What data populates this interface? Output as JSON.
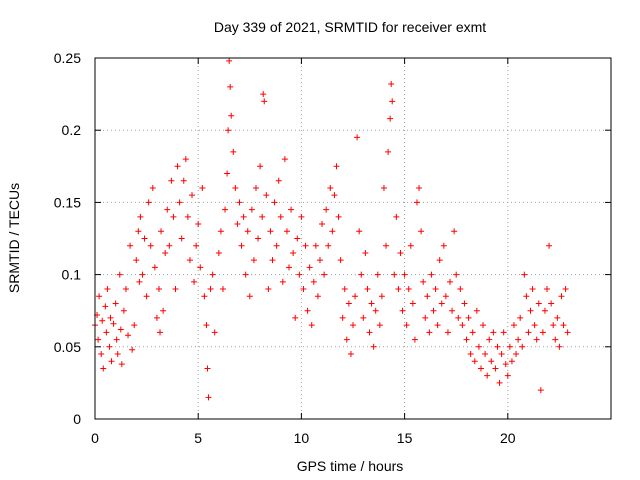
{
  "chart_data": {
    "type": "scatter",
    "title": "Day 339 of 2021, SRMTID for receiver exmt",
    "xlabel": "GPS time / hours",
    "ylabel": "SRMTID / TECUs",
    "xlim": [
      0,
      25
    ],
    "ylim": [
      0,
      0.25
    ],
    "xticks": [
      0,
      5,
      10,
      15,
      20
    ],
    "xtick_labels": [
      "0",
      "5",
      "10",
      "15",
      "20"
    ],
    "yticks": [
      0,
      0.05,
      0.1,
      0.15,
      0.2,
      0.25
    ],
    "ytick_labels": [
      "0",
      "0.05",
      "0.1",
      "0.15",
      "0.2",
      "0.25"
    ],
    "grid": true,
    "marker": "+",
    "color": "#ff0000",
    "series": [
      {
        "name": "SRMTID",
        "points": [
          [
            0.0,
            0.065
          ],
          [
            0.1,
            0.072
          ],
          [
            0.15,
            0.055
          ],
          [
            0.2,
            0.085
          ],
          [
            0.3,
            0.045
          ],
          [
            0.35,
            0.068
          ],
          [
            0.4,
            0.035
          ],
          [
            0.5,
            0.078
          ],
          [
            0.55,
            0.06
          ],
          [
            0.6,
            0.09
          ],
          [
            0.7,
            0.05
          ],
          [
            0.75,
            0.07
          ],
          [
            0.8,
            0.04
          ],
          [
            0.9,
            0.066
          ],
          [
            1.0,
            0.08
          ],
          [
            1.05,
            0.055
          ],
          [
            1.1,
            0.045
          ],
          [
            1.2,
            0.1
          ],
          [
            1.25,
            0.062
          ],
          [
            1.3,
            0.038
          ],
          [
            1.4,
            0.075
          ],
          [
            1.5,
            0.09
          ],
          [
            1.6,
            0.058
          ],
          [
            1.7,
            0.12
          ],
          [
            1.8,
            0.048
          ],
          [
            1.9,
            0.065
          ],
          [
            2.0,
            0.11
          ],
          [
            2.1,
            0.13
          ],
          [
            2.15,
            0.095
          ],
          [
            2.2,
            0.14
          ],
          [
            2.3,
            0.1
          ],
          [
            2.4,
            0.125
          ],
          [
            2.5,
            0.085
          ],
          [
            2.6,
            0.15
          ],
          [
            2.7,
            0.12
          ],
          [
            2.8,
            0.16
          ],
          [
            2.9,
            0.105
          ],
          [
            3.0,
            0.07
          ],
          [
            3.1,
            0.09
          ],
          [
            3.15,
            0.06
          ],
          [
            3.2,
            0.13
          ],
          [
            3.3,
            0.075
          ],
          [
            3.4,
            0.115
          ],
          [
            3.5,
            0.145
          ],
          [
            3.6,
            0.12
          ],
          [
            3.7,
            0.165
          ],
          [
            3.8,
            0.14
          ],
          [
            3.9,
            0.09
          ],
          [
            4.0,
            0.175
          ],
          [
            4.1,
            0.15
          ],
          [
            4.2,
            0.125
          ],
          [
            4.3,
            0.165
          ],
          [
            4.4,
            0.18
          ],
          [
            4.5,
            0.14
          ],
          [
            4.6,
            0.11
          ],
          [
            4.7,
            0.155
          ],
          [
            4.8,
            0.095
          ],
          [
            4.9,
            0.12
          ],
          [
            5.0,
            0.135
          ],
          [
            5.1,
            0.105
          ],
          [
            5.2,
            0.16
          ],
          [
            5.3,
            0.085
          ],
          [
            5.4,
            0.065
          ],
          [
            5.45,
            0.035
          ],
          [
            5.5,
            0.015
          ],
          [
            5.6,
            0.09
          ],
          [
            5.7,
            0.1
          ],
          [
            5.8,
            0.06
          ],
          [
            6.0,
            0.115
          ],
          [
            6.1,
            0.13
          ],
          [
            6.2,
            0.09
          ],
          [
            6.3,
            0.145
          ],
          [
            6.4,
            0.17
          ],
          [
            6.45,
            0.2
          ],
          [
            6.5,
            0.248
          ],
          [
            6.55,
            0.23
          ],
          [
            6.6,
            0.21
          ],
          [
            6.7,
            0.185
          ],
          [
            6.8,
            0.16
          ],
          [
            6.9,
            0.135
          ],
          [
            7.0,
            0.15
          ],
          [
            7.1,
            0.12
          ],
          [
            7.2,
            0.14
          ],
          [
            7.3,
            0.1
          ],
          [
            7.4,
            0.13
          ],
          [
            7.5,
            0.085
          ],
          [
            7.6,
            0.145
          ],
          [
            7.7,
            0.11
          ],
          [
            7.8,
            0.16
          ],
          [
            7.9,
            0.125
          ],
          [
            8.0,
            0.175
          ],
          [
            8.1,
            0.14
          ],
          [
            8.15,
            0.225
          ],
          [
            8.2,
            0.22
          ],
          [
            8.3,
            0.155
          ],
          [
            8.4,
            0.09
          ],
          [
            8.5,
            0.13
          ],
          [
            8.6,
            0.11
          ],
          [
            8.7,
            0.15
          ],
          [
            8.8,
            0.12
          ],
          [
            8.9,
            0.165
          ],
          [
            9.0,
            0.14
          ],
          [
            9.1,
            0.095
          ],
          [
            9.2,
            0.18
          ],
          [
            9.3,
            0.13
          ],
          [
            9.4,
            0.105
          ],
          [
            9.5,
            0.145
          ],
          [
            9.6,
            0.115
          ],
          [
            9.7,
            0.07
          ],
          [
            9.8,
            0.125
          ],
          [
            9.9,
            0.1
          ],
          [
            10.0,
            0.14
          ],
          [
            10.1,
            0.09
          ],
          [
            10.2,
            0.12
          ],
          [
            10.3,
            0.075
          ],
          [
            10.4,
            0.105
          ],
          [
            10.5,
            0.065
          ],
          [
            10.6,
            0.095
          ],
          [
            10.7,
            0.12
          ],
          [
            10.8,
            0.085
          ],
          [
            10.9,
            0.11
          ],
          [
            11.0,
            0.135
          ],
          [
            11.1,
            0.1
          ],
          [
            11.2,
            0.145
          ],
          [
            11.3,
            0.12
          ],
          [
            11.4,
            0.16
          ],
          [
            11.5,
            0.13
          ],
          [
            11.6,
            0.155
          ],
          [
            11.7,
            0.175
          ],
          [
            11.8,
            0.14
          ],
          [
            11.9,
            0.11
          ],
          [
            12.0,
            0.07
          ],
          [
            12.1,
            0.09
          ],
          [
            12.2,
            0.055
          ],
          [
            12.3,
            0.08
          ],
          [
            12.4,
            0.045
          ],
          [
            12.5,
            0.065
          ],
          [
            12.6,
            0.085
          ],
          [
            12.7,
            0.195
          ],
          [
            12.8,
            0.13
          ],
          [
            12.9,
            0.1
          ],
          [
            13.0,
            0.07
          ],
          [
            13.1,
            0.115
          ],
          [
            13.2,
            0.09
          ],
          [
            13.3,
            0.06
          ],
          [
            13.4,
            0.08
          ],
          [
            13.5,
            0.05
          ],
          [
            13.6,
            0.075
          ],
          [
            13.7,
            0.1
          ],
          [
            13.8,
            0.065
          ],
          [
            13.9,
            0.085
          ],
          [
            14.0,
            0.16
          ],
          [
            14.1,
            0.12
          ],
          [
            14.2,
            0.185
          ],
          [
            14.3,
            0.208
          ],
          [
            14.35,
            0.232
          ],
          [
            14.4,
            0.22
          ],
          [
            14.5,
            0.1
          ],
          [
            14.6,
            0.14
          ],
          [
            14.7,
            0.09
          ],
          [
            14.8,
            0.115
          ],
          [
            14.9,
            0.075
          ],
          [
            15.0,
            0.1
          ],
          [
            15.1,
            0.065
          ],
          [
            15.2,
            0.09
          ],
          [
            15.3,
            0.12
          ],
          [
            15.4,
            0.08
          ],
          [
            15.5,
            0.055
          ],
          [
            15.6,
            0.15
          ],
          [
            15.7,
            0.16
          ],
          [
            15.8,
            0.13
          ],
          [
            15.9,
            0.095
          ],
          [
            16.0,
            0.07
          ],
          [
            16.1,
            0.085
          ],
          [
            16.2,
            0.06
          ],
          [
            16.3,
            0.1
          ],
          [
            16.4,
            0.075
          ],
          [
            16.5,
            0.09
          ],
          [
            16.6,
            0.065
          ],
          [
            16.7,
            0.11
          ],
          [
            16.8,
            0.08
          ],
          [
            16.9,
            0.12
          ],
          [
            17.0,
            0.085
          ],
          [
            17.1,
            0.06
          ],
          [
            17.2,
            0.095
          ],
          [
            17.3,
            0.075
          ],
          [
            17.4,
            0.13
          ],
          [
            17.5,
            0.1
          ],
          [
            17.6,
            0.07
          ],
          [
            17.7,
            0.09
          ],
          [
            17.8,
            0.065
          ],
          [
            17.9,
            0.08
          ],
          [
            18.0,
            0.055
          ],
          [
            18.1,
            0.07
          ],
          [
            18.2,
            0.045
          ],
          [
            18.3,
            0.06
          ],
          [
            18.4,
            0.04
          ],
          [
            18.5,
            0.075
          ],
          [
            18.6,
            0.05
          ],
          [
            18.7,
            0.035
          ],
          [
            18.8,
            0.065
          ],
          [
            18.9,
            0.045
          ],
          [
            19.0,
            0.03
          ],
          [
            19.1,
            0.055
          ],
          [
            19.2,
            0.04
          ],
          [
            19.3,
            0.06
          ],
          [
            19.4,
            0.035
          ],
          [
            19.5,
            0.05
          ],
          [
            19.6,
            0.025
          ],
          [
            19.7,
            0.045
          ],
          [
            19.8,
            0.06
          ],
          [
            19.9,
            0.038
          ],
          [
            20.0,
            0.03
          ],
          [
            20.1,
            0.05
          ],
          [
            20.2,
            0.04
          ],
          [
            20.3,
            0.065
          ],
          [
            20.4,
            0.045
          ],
          [
            20.5,
            0.055
          ],
          [
            20.6,
            0.07
          ],
          [
            20.7,
            0.05
          ],
          [
            20.8,
            0.1
          ],
          [
            20.9,
            0.085
          ],
          [
            21.0,
            0.06
          ],
          [
            21.1,
            0.075
          ],
          [
            21.2,
            0.09
          ],
          [
            21.3,
            0.065
          ],
          [
            21.4,
            0.055
          ],
          [
            21.5,
            0.08
          ],
          [
            21.6,
            0.02
          ],
          [
            21.7,
            0.06
          ],
          [
            21.8,
            0.075
          ],
          [
            21.9,
            0.09
          ],
          [
            22.0,
            0.12
          ],
          [
            22.1,
            0.08
          ],
          [
            22.2,
            0.065
          ],
          [
            22.3,
            0.055
          ],
          [
            22.4,
            0.07
          ],
          [
            22.5,
            0.05
          ],
          [
            22.6,
            0.085
          ],
          [
            22.7,
            0.065
          ],
          [
            22.8,
            0.09
          ],
          [
            22.9,
            0.06
          ]
        ]
      }
    ]
  }
}
